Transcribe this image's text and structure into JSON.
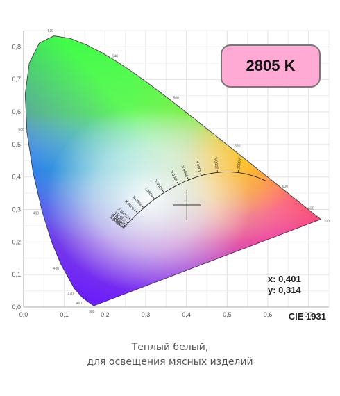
{
  "chart_data": {
    "type": "scatter",
    "title": "CIE 1931",
    "xlim": [
      0,
      0.75
    ],
    "ylim": [
      0,
      0.85
    ],
    "x_ticks": [
      "0,0",
      "0,1",
      "0,2",
      "0,3",
      "0,4",
      "0,5",
      "0,6",
      "0,7"
    ],
    "y_ticks": [
      "0,0",
      "0,1",
      "0,2",
      "0,3",
      "0,4",
      "0,5",
      "0,6",
      "0,7",
      "0,8"
    ],
    "grid": true,
    "point": {
      "x": 0.401,
      "y": 0.314,
      "marker": "cross"
    },
    "coordinates": {
      "x_label": "x: 0,401",
      "y_label": "y: 0,314"
    },
    "cct_badge": {
      "text": "2805 K",
      "color": "#ffaad4"
    },
    "planckian_locus_labels": [
      "2000 K",
      "2500 K",
      "3000 K",
      "3500 K",
      "4000 K",
      "5000 K",
      "6000 K",
      "8000 K",
      "10000 K",
      "15000 K",
      "20000 K",
      "25000 K",
      "30000 K",
      "40000 K",
      "50000 K"
    ],
    "spectral_locus_labels": [
      "380",
      "460",
      "470",
      "480",
      "490",
      "500",
      "520",
      "540",
      "560",
      "580",
      "600",
      "620",
      "700"
    ]
  },
  "caption": {
    "line1": "Теплый белый,",
    "line2": "для освещения мясных изделий"
  }
}
